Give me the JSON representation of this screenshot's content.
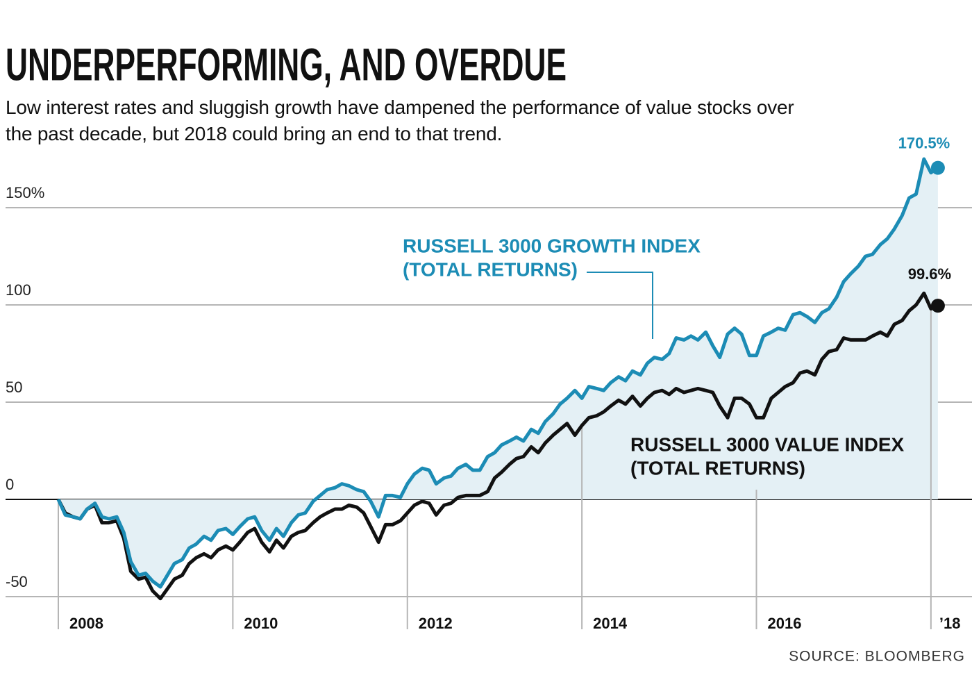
{
  "chart_data": {
    "type": "line",
    "title": "UNDERPERFORMING, AND OVERDUE",
    "subtitle": "Low interest rates and sluggish growth have dampened the performance of value stocks over the past decade, but 2018 could bring an end to that trend.",
    "source": "SOURCE: BLOOMBERG",
    "x": [
      2008.0,
      2008.08,
      2008.17,
      2008.25,
      2008.33,
      2008.42,
      2008.5,
      2008.58,
      2008.67,
      2008.75,
      2008.83,
      2008.92,
      2009.0,
      2009.08,
      2009.17,
      2009.25,
      2009.33,
      2009.42,
      2009.5,
      2009.58,
      2009.67,
      2009.75,
      2009.83,
      2009.92,
      2010.0,
      2010.08,
      2010.17,
      2010.25,
      2010.33,
      2010.42,
      2010.5,
      2010.58,
      2010.67,
      2010.75,
      2010.83,
      2010.92,
      2011.0,
      2011.08,
      2011.17,
      2011.25,
      2011.33,
      2011.42,
      2011.5,
      2011.58,
      2011.67,
      2011.75,
      2011.83,
      2011.92,
      2012.0,
      2012.08,
      2012.17,
      2012.25,
      2012.33,
      2012.42,
      2012.5,
      2012.58,
      2012.67,
      2012.75,
      2012.83,
      2012.92,
      2013.0,
      2013.08,
      2013.17,
      2013.25,
      2013.33,
      2013.42,
      2013.5,
      2013.58,
      2013.67,
      2013.75,
      2013.83,
      2013.92,
      2014.0,
      2014.08,
      2014.17,
      2014.25,
      2014.33,
      2014.42,
      2014.5,
      2014.58,
      2014.67,
      2014.75,
      2014.83,
      2014.92,
      2015.0,
      2015.08,
      2015.17,
      2015.25,
      2015.33,
      2015.42,
      2015.5,
      2015.58,
      2015.67,
      2015.75,
      2015.83,
      2015.92,
      2016.0,
      2016.08,
      2016.17,
      2016.25,
      2016.33,
      2016.42,
      2016.5,
      2016.58,
      2016.67,
      2016.75,
      2016.83,
      2016.92,
      2017.0,
      2017.08,
      2017.17,
      2017.25,
      2017.33,
      2017.42,
      2017.5,
      2017.58,
      2017.67,
      2017.75,
      2017.83,
      2017.92,
      2018.0,
      2018.08
    ],
    "series": [
      {
        "name": "RUSSELL 3000 GROWTH INDEX",
        "subname": "(TOTAL RETURNS)",
        "color": "#1c8cb5",
        "values": [
          0,
          -8,
          -9,
          -10,
          -5,
          -2,
          -9,
          -10,
          -9,
          -17,
          -32,
          -39,
          -38,
          -42,
          -45,
          -39,
          -33,
          -31,
          -25,
          -23,
          -19,
          -21,
          -16,
          -15,
          -18,
          -14,
          -10,
          -9,
          -16,
          -21,
          -15,
          -19,
          -12,
          -8,
          -7,
          -1,
          2,
          5,
          6,
          8,
          7,
          5,
          4,
          -1,
          -9,
          2,
          2,
          1,
          8,
          13,
          16,
          15,
          8,
          11,
          12,
          16,
          18,
          15,
          15,
          22,
          24,
          28,
          30,
          32,
          30,
          36,
          34,
          40,
          44,
          49,
          52,
          56,
          52,
          58,
          57,
          56,
          60,
          63,
          61,
          66,
          64,
          70,
          73,
          72,
          75,
          83,
          82,
          84,
          82,
          86,
          79,
          73,
          85,
          88,
          85,
          74,
          74,
          84,
          86,
          88,
          87,
          95,
          96,
          94,
          91,
          96,
          98,
          104,
          112,
          116,
          120,
          125,
          126,
          131,
          134,
          139,
          146,
          155,
          157,
          175,
          168,
          170.5
        ],
        "end_label": "170.5%"
      },
      {
        "name": "RUSSELL 3000 VALUE INDEX",
        "subname": "(TOTAL RETURNS)",
        "color": "#111111",
        "values": [
          0,
          -7,
          -9,
          -10,
          -5,
          -3,
          -12,
          -12,
          -11,
          -20,
          -37,
          -41,
          -40,
          -47,
          -51,
          -46,
          -41,
          -39,
          -33,
          -30,
          -28,
          -30,
          -26,
          -24,
          -26,
          -22,
          -17,
          -15,
          -22,
          -27,
          -21,
          -25,
          -19,
          -17,
          -16,
          -12,
          -9,
          -7,
          -5,
          -5,
          -3,
          -4,
          -7,
          -14,
          -22,
          -13,
          -13,
          -11,
          -7,
          -3,
          -1,
          -2,
          -8,
          -3,
          -2,
          1,
          2,
          2,
          2,
          4,
          11,
          14,
          18,
          21,
          22,
          27,
          24,
          29,
          33,
          36,
          39,
          33,
          38,
          42,
          43,
          45,
          48,
          51,
          49,
          53,
          48,
          52,
          55,
          56,
          54,
          57,
          55,
          56,
          57,
          56,
          55,
          48,
          42,
          52,
          52,
          49,
          42,
          42,
          52,
          55,
          58,
          60,
          65,
          66,
          64,
          72,
          76,
          77,
          83,
          82,
          82,
          82,
          84,
          86,
          84,
          90,
          92,
          97,
          100,
          106,
          98,
          99.6
        ],
        "end_label": "99.6%"
      }
    ],
    "area_color": "#e4f0f5",
    "xlim": [
      2008,
      2018.2
    ],
    "xticks": [
      2008,
      2010,
      2012,
      2014,
      2016,
      {
        "value": 2018,
        "label": "’18"
      }
    ],
    "ylim": [
      -55,
      180
    ],
    "yticks": [
      -50,
      0,
      50,
      100,
      {
        "value": 150,
        "label": "150%"
      }
    ],
    "grid": true
  }
}
